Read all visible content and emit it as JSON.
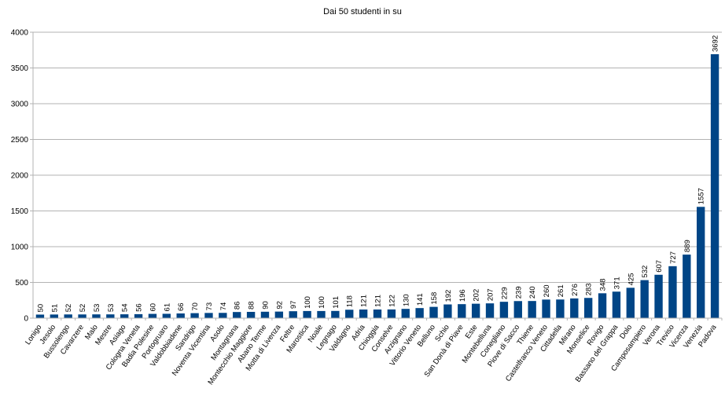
{
  "chart_data": {
    "type": "bar",
    "title": "Dai 50 studenti in su",
    "xlabel": "",
    "ylabel": "",
    "ylim": [
      0,
      4000
    ],
    "yticks": [
      0,
      500,
      1000,
      1500,
      2000,
      2500,
      3000,
      3500,
      4000
    ],
    "grid": true,
    "legend": "none",
    "bar_color": "#004586",
    "categories": [
      "Lonigo",
      "Jesolo",
      "Bussolengo",
      "Cavarzere",
      "Malo",
      "Mestre",
      "Asiago",
      "Cologna Veneta",
      "Badia Polesine",
      "Portogruaro",
      "Valdobbiadene",
      "Sandrigo",
      "Noventa Vicentina",
      "Asolo",
      "Montagnana",
      "Montecchio Maggiore",
      "Abano Terme",
      "Motta di Livenza",
      "Feltre",
      "Marostica",
      "Noale",
      "Legnago",
      "Valdagno",
      "Adria",
      "Chioggia",
      "Conselve",
      "Arzignano",
      "Vittorio Veneto",
      "Belluno",
      "Schio",
      "San Donà di Piave",
      "Este",
      "Montebelluna",
      "Conegliano",
      "Piove di Sacco",
      "Thiene",
      "Castelfranco Veneto",
      "Cittadella",
      "Mirano",
      "Monselice",
      "Rovigo",
      "Bassano del Grappa",
      "Dolo",
      "Camposampiero",
      "Verona",
      "Treviso",
      "Vicenza",
      "Venezia",
      "Padova"
    ],
    "values": [
      50,
      51,
      52,
      52,
      53,
      53,
      54,
      56,
      60,
      61,
      66,
      70,
      73,
      74,
      86,
      88,
      90,
      92,
      97,
      100,
      100,
      101,
      118,
      121,
      121,
      122,
      130,
      141,
      158,
      192,
      196,
      202,
      207,
      229,
      239,
      240,
      260,
      261,
      276,
      283,
      348,
      371,
      425,
      532,
      607,
      727,
      889,
      1557,
      3692
    ]
  }
}
